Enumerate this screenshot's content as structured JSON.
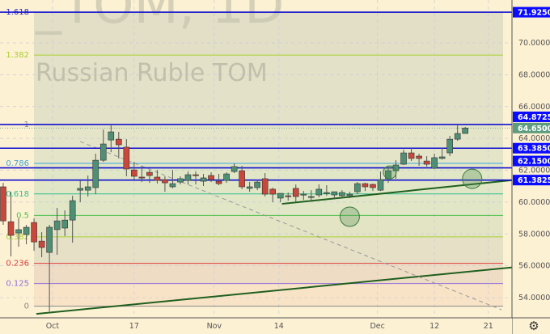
{
  "watermark": {
    "symbol": "_TOM, 1D",
    "name": "Russian Ruble TOM"
  },
  "chart_data": {
    "type": "candlestick",
    "y_ticks": [
      "54.0000",
      "56.0000",
      "58.0000",
      "60.0000",
      "62.0000",
      "64.0000",
      "66.0000",
      "68.0000",
      "70.0000"
    ],
    "y_tick_values": [
      54,
      56,
      58,
      60,
      62,
      64,
      66,
      68,
      70
    ],
    "ylim": [
      52.5,
      72.8
    ],
    "x_labels": [
      {
        "label": "Oct",
        "at_bar": 6.4
      },
      {
        "label": "17",
        "at_bar": 17
      },
      {
        "label": "Nov",
        "at_bar": 27.4
      },
      {
        "label": "14",
        "at_bar": 35.8
      },
      {
        "label": "Dec",
        "at_bar": 48.6
      },
      {
        "label": "12",
        "at_bar": 56
      },
      {
        "label": "21",
        "at_bar": 63
      }
    ],
    "ohlc": [
      [
        60.96,
        61.21,
        58.57,
        58.82
      ],
      [
        58.77,
        60.65,
        56.59,
        57.91
      ],
      [
        58.06,
        58.98,
        57.2,
        58.27
      ],
      [
        57.96,
        58.57,
        57.35,
        58.42
      ],
      [
        58.72,
        58.98,
        56.94,
        57.5
      ],
      [
        57.55,
        58.11,
        56.54,
        57.15
      ],
      [
        56.84,
        58.57,
        53.13,
        58.42
      ],
      [
        58.27,
        59.64,
        56.69,
        58.82
      ],
      [
        58.37,
        59.48,
        57.86,
        58.87
      ],
      [
        58.87,
        60.4,
        57.45,
        60.09
      ],
      [
        60.75,
        61.36,
        59.99,
        60.86
      ],
      [
        60.75,
        61.67,
        60.35,
        60.96
      ],
      [
        60.91,
        63.04,
        60.5,
        62.63
      ],
      [
        62.63,
        64.56,
        62.53,
        63.65
      ],
      [
        63.9,
        64.82,
        63.14,
        64.41
      ],
      [
        63.95,
        64.41,
        62.74,
        63.6
      ],
      [
        63.45,
        63.95,
        61.62,
        62.08
      ],
      [
        62.02,
        62.53,
        61.41,
        61.62
      ],
      [
        61.57,
        62.28,
        61.26,
        61.52
      ],
      [
        61.87,
        62.02,
        61.21,
        61.67
      ],
      [
        61.57,
        62.02,
        61.16,
        61.36
      ],
      [
        61.41,
        61.62,
        60.65,
        61.21
      ],
      [
        60.96,
        62.02,
        60.86,
        61.16
      ],
      [
        61.26,
        61.62,
        61.11,
        61.47
      ],
      [
        61.36,
        61.92,
        61.11,
        61.72
      ],
      [
        61.72,
        61.92,
        61.11,
        61.67
      ],
      [
        61.31,
        61.77,
        61.01,
        61.52
      ],
      [
        61.67,
        61.87,
        61.26,
        61.41
      ],
      [
        61.31,
        61.77,
        61.06,
        61.16
      ],
      [
        61.36,
        61.87,
        61.21,
        61.77
      ],
      [
        61.92,
        62.43,
        61.82,
        62.23
      ],
      [
        61.97,
        62.28,
        60.81,
        60.96
      ],
      [
        60.86,
        61.26,
        60.65,
        60.96
      ],
      [
        60.91,
        61.41,
        60.75,
        61.26
      ],
      [
        61.47,
        61.82,
        60.35,
        60.5
      ],
      [
        60.81,
        60.91,
        59.99,
        60.5
      ],
      [
        60.25,
        60.55,
        59.99,
        60.55
      ],
      [
        60.4,
        60.6,
        60.09,
        60.35
      ],
      [
        60.86,
        61.11,
        59.99,
        60.35
      ],
      [
        60.45,
        60.7,
        60.14,
        60.5
      ],
      [
        60.35,
        60.75,
        60.09,
        60.35
      ],
      [
        60.45,
        61.11,
        60.3,
        60.81
      ],
      [
        60.6,
        61.06,
        60.4,
        60.6
      ],
      [
        60.45,
        60.65,
        60.2,
        60.65
      ],
      [
        60.4,
        60.75,
        60.25,
        60.6
      ],
      [
        60.4,
        60.65,
        60.25,
        60.5
      ],
      [
        60.65,
        61.26,
        60.5,
        61.16
      ],
      [
        61.16,
        61.21,
        60.7,
        60.96
      ],
      [
        61.11,
        61.16,
        60.7,
        60.91
      ],
      [
        60.75,
        61.92,
        60.7,
        61.41
      ],
      [
        61.47,
        62.23,
        61.21,
        61.97
      ],
      [
        61.97,
        62.63,
        61.47,
        62.33
      ],
      [
        62.38,
        63.29,
        62.33,
        63.09
      ],
      [
        63.09,
        63.4,
        62.58,
        62.74
      ],
      [
        62.89,
        63.04,
        62.28,
        62.74
      ],
      [
        62.58,
        62.89,
        62.23,
        62.38
      ],
      [
        62.13,
        63.04,
        62.08,
        62.79
      ],
      [
        62.74,
        63.4,
        62.68,
        62.84
      ],
      [
        63.09,
        64.16,
        62.89,
        63.95
      ],
      [
        63.95,
        64.82,
        63.85,
        64.31
      ],
      [
        64.31,
        64.72,
        64.31,
        64.65
      ]
    ],
    "colors": {
      "up": "#4f8f75",
      "down": "#c9473b",
      "level_line": "#1010d0",
      "label_bg": "#0b0bff",
      "last_price_bg": "#5e9c80",
      "trend": "#1f5f1f"
    },
    "fib": {
      "price_0": 53.46,
      "price_1": 64.8725,
      "levels": [
        {
          "label": "0",
          "ratio": 0,
          "color": "#888888"
        },
        {
          "label": "0.125",
          "ratio": 0.125,
          "color": "#9370db"
        },
        {
          "label": "0.236",
          "ratio": 0.236,
          "color": "#e04040"
        },
        {
          "label": "0.382",
          "ratio": 0.382,
          "color": "#a8d030"
        },
        {
          "label": "0.5",
          "ratio": 0.5,
          "color": "#4cc04c"
        },
        {
          "label": "0.618",
          "ratio": 0.618,
          "color": "#30c090"
        },
        {
          "label": "0.786",
          "ratio": 0.786,
          "color": "#40a8e0"
        },
        {
          "label": "1",
          "ratio": 1,
          "color": "#888888"
        },
        {
          "label": "1.382",
          "ratio": 1.382,
          "color": "#a8d030"
        },
        {
          "label": "1.618",
          "ratio": 1.618,
          "color": "#3030c0"
        }
      ]
    },
    "horizontal_levels": [
      {
        "price": 71.925,
        "label": "71.9250"
      },
      {
        "price": 64.8725,
        "label": "64.8725"
      },
      {
        "price": 63.385,
        "label": "63.3850"
      },
      {
        "price": 62.15,
        "label": "62.1500"
      },
      {
        "price": 61.3825,
        "label": "61.3825"
      }
    ],
    "last_price": {
      "price": 64.65,
      "label": "64.6500"
    },
    "trend_lines": [
      {
        "from": [
          36.2,
          59.89
        ],
        "to": [
          71,
          61.62
        ],
        "style": "solid"
      },
      {
        "from": [
          4.3,
          52.98
        ],
        "to": [
          71,
          56.13
        ],
        "style": "solid"
      },
      {
        "from": [
          10,
          63.8
        ],
        "to": [
          64.7,
          53.24
        ],
        "style": "dashed"
      }
    ],
    "circles": [
      [
        45,
        59.08
      ],
      [
        50.2,
        61.87
      ],
      [
        60.9,
        61.46
      ]
    ]
  },
  "toolbar": {
    "settings_icon": "gear-icon"
  }
}
